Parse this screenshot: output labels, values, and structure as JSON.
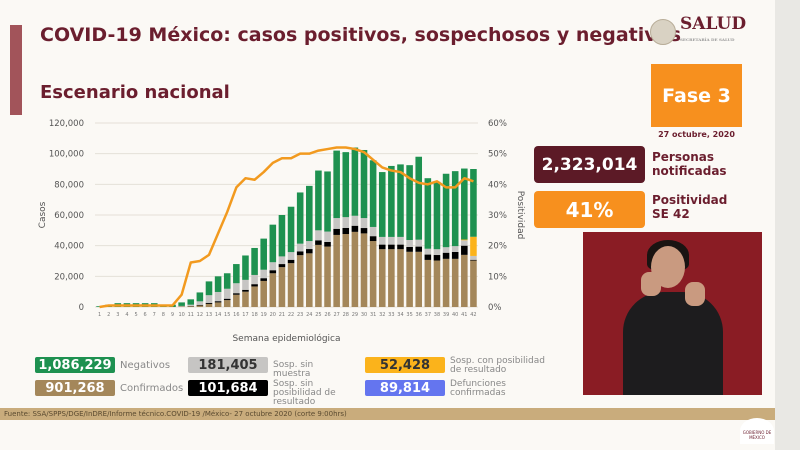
{
  "header": {
    "title": "COVID-19 México: casos positivos, sospechosos y negativos",
    "subtitle": "Escenario nacional",
    "logo_text": "SALUD",
    "logo_subtext": "SECRETARÍA DE SALUD"
  },
  "phase": {
    "label": "Fase 3",
    "date": "27 octubre, 2020",
    "color": "#f7901e"
  },
  "kpis": [
    {
      "value": "2,323,014",
      "label_1": "Personas",
      "label_2": "notificadas",
      "color": "#5c1a26"
    },
    {
      "value": "41%",
      "label_1": "Positividad",
      "label_2": "SE 42",
      "color": "#f7901e"
    }
  ],
  "legend": [
    {
      "value": "1,086,229",
      "label": "Negativos",
      "color": "#1e9150"
    },
    {
      "value": "181,405",
      "label": "Sosp. sin muestra",
      "color": "#c6c5c3"
    },
    {
      "value": "52,428",
      "label": "Sosp. con posibilidad de resultado",
      "color": "#fbb31b"
    },
    {
      "value": "901,268",
      "label": "Confirmados",
      "color": "#a4875a"
    },
    {
      "value": "101,684",
      "label": "Sosp. sin posibilidad de resultado",
      "color": "#000000"
    },
    {
      "value": "89,814",
      "label": "Defunciones confirmadas",
      "color": "#6475ef"
    }
  ],
  "source": "Fuente: SSA/SPPS/DGE/InDRE/Informe técnico.COVID-19 /México- 27 octubre 2020 (corte 9:00hrs)",
  "footer_logo": "GOBIERNO DE MÉXICO",
  "chart_data": {
    "type": "bar",
    "stacked": true,
    "xlabel": "Semana epidemiológica",
    "ylabel": "Casos",
    "y2label": "Positividad",
    "ylim": [
      0,
      120000
    ],
    "y2lim": [
      0,
      60
    ],
    "yticks": [
      "0",
      "20,000",
      "40,000",
      "60,000",
      "80,000",
      "100,000",
      "120,000"
    ],
    "y2ticks": [
      "0%",
      "10%",
      "20%",
      "30%",
      "40%",
      "50%",
      "60%"
    ],
    "grid": true,
    "categories": [
      "1",
      "2",
      "3",
      "4",
      "5",
      "6",
      "7",
      "8",
      "9",
      "10",
      "11",
      "12",
      "13",
      "14",
      "15",
      "16",
      "17",
      "18",
      "19",
      "20",
      "21",
      "22",
      "23",
      "24",
      "25",
      "26",
      "27",
      "28",
      "29",
      "30",
      "31",
      "32",
      "33",
      "34",
      "35",
      "36",
      "37",
      "38",
      "39",
      "40",
      "41",
      "42"
    ],
    "series": [
      {
        "name": "Confirmados",
        "color": "#a4875a",
        "values": [
          0,
          0,
          0,
          0,
          0,
          0,
          0,
          0,
          0,
          300,
          500,
          1000,
          2000,
          3000,
          4500,
          8000,
          10000,
          13400,
          17000,
          22000,
          26000,
          28600,
          33800,
          35000,
          40500,
          39400,
          47000,
          47600,
          49000,
          48000,
          43000,
          37700,
          37700,
          37700,
          36000,
          36000,
          30700,
          30300,
          31400,
          31400,
          34000,
          30300
        ]
      },
      {
        "name": "Sosp. sin posibilidad de resultado",
        "color": "#000000",
        "values": [
          0,
          0,
          0,
          0,
          0,
          0,
          0,
          0,
          0,
          100,
          200,
          400,
          700,
          800,
          900,
          1000,
          1200,
          1500,
          1800,
          2000,
          2000,
          2200,
          2500,
          2800,
          3000,
          3000,
          4000,
          4000,
          4000,
          3500,
          3200,
          3000,
          3000,
          3000,
          3200,
          3400,
          3500,
          3600,
          4000,
          4500,
          6000,
          500
        ]
      },
      {
        "name": "Sosp. sin muestra",
        "color": "#c6c5c3",
        "values": [
          0,
          0,
          0,
          0,
          0,
          0,
          0,
          0,
          0,
          300,
          800,
          2300,
          5000,
          6000,
          6500,
          6500,
          6500,
          6000,
          5500,
          5200,
          5000,
          5000,
          5000,
          5200,
          6500,
          6800,
          7000,
          7000,
          6500,
          6500,
          6000,
          5000,
          5000,
          5000,
          4500,
          4500,
          3800,
          3800,
          3600,
          3800,
          3500,
          2500
        ]
      },
      {
        "name": "Sosp. con posibilidad de resultado",
        "color": "#fbb31b",
        "values": [
          0,
          0,
          0,
          0,
          0,
          0,
          0,
          0,
          0,
          0,
          0,
          0,
          0,
          0,
          0,
          0,
          0,
          0,
          0,
          0,
          0,
          0,
          0,
          0,
          0,
          0,
          0,
          0,
          0,
          0,
          0,
          0,
          0,
          0,
          0,
          0,
          0,
          0,
          0,
          0,
          500,
          12500
        ]
      },
      {
        "name": "Negativos",
        "color": "#1e9150",
        "values": [
          500,
          1500,
          2500,
          2500,
          2500,
          2500,
          2500,
          1500,
          1500,
          2300,
          3500,
          5800,
          9000,
          10200,
          10100,
          12500,
          15900,
          17600,
          20300,
          24500,
          27000,
          29600,
          33400,
          36000,
          39000,
          39200,
          44000,
          42400,
          44500,
          44400,
          43500,
          42300,
          46300,
          47300,
          48800,
          54100,
          46000,
          44000,
          47900,
          48900,
          46300,
          44200
        ]
      }
    ],
    "line": {
      "name": "Positividad",
      "color": "#f29a1f",
      "values": [
        0,
        0.5,
        0.5,
        0.5,
        0.5,
        0.5,
        0.5,
        0.5,
        0.5,
        4,
        14.5,
        15,
        17,
        24,
        31,
        39,
        42,
        41.5,
        44,
        47,
        48.5,
        48.5,
        50,
        50,
        51,
        51.5,
        52,
        52,
        51.5,
        50.5,
        48,
        45.5,
        44.5,
        44,
        42,
        40.5,
        40,
        41,
        39,
        39,
        42,
        41
      ]
    }
  }
}
